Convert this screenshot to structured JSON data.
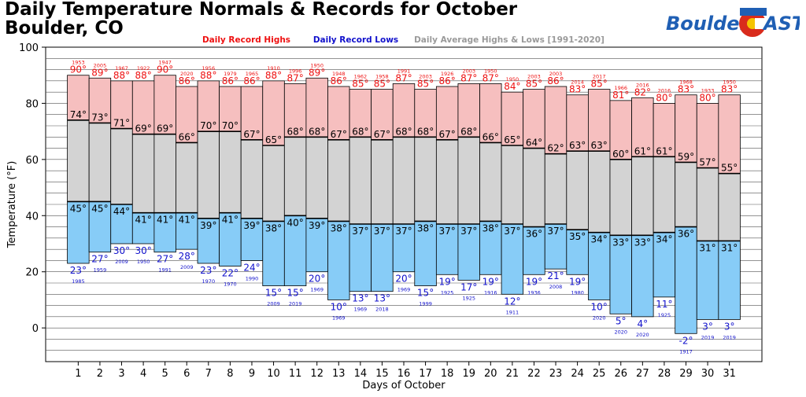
{
  "title": {
    "line1": "Daily Temperature Normals & Records for October",
    "line2": "Boulder, CO"
  },
  "logo": {
    "text_left": "Boulder",
    "text_right": "AST",
    "colors": {
      "blue": "#1f5fb4",
      "red": "#d92b1c",
      "yellow": "#f5c400"
    }
  },
  "colors": {
    "record_high_fill": "#f6bfbf",
    "normal_fill": "#d3d3d3",
    "record_low_fill": "#87ccf7",
    "high_label": "#ee1111",
    "low_label": "#1111cc",
    "normal_label": "#000000",
    "avg_legend": "#9a9a9a"
  },
  "chart_data": {
    "type": "bar",
    "title": "",
    "xlabel": "Days of October",
    "ylabel": "Temperature (°F)",
    "ylim": [
      -12,
      100
    ],
    "yticks": [
      0,
      20,
      40,
      60,
      80,
      100
    ],
    "grid": true,
    "legend": {
      "placement": "top",
      "entries": [
        "Daily Record Highs",
        "Daily Record Lows",
        "Daily Average Highs & Lows [1991-2020]"
      ]
    },
    "categories": [
      "1",
      "2",
      "3",
      "4",
      "5",
      "6",
      "7",
      "8",
      "9",
      "10",
      "11",
      "12",
      "13",
      "14",
      "15",
      "16",
      "17",
      "18",
      "19",
      "20",
      "21",
      "22",
      "23",
      "24",
      "25",
      "26",
      "27",
      "28",
      "29",
      "30",
      "31"
    ],
    "series": [
      {
        "name": "Daily Record Highs",
        "values": [
          90,
          89,
          88,
          88,
          90,
          86,
          88,
          86,
          86,
          88,
          87,
          89,
          86,
          85,
          85,
          87,
          85,
          86,
          87,
          87,
          84,
          85,
          86,
          83,
          85,
          81,
          82,
          80,
          83,
          80,
          83
        ]
      },
      {
        "name": "Daily Average Highs & Lows [1991-2020]",
        "key": "avg_high",
        "values": [
          74,
          73,
          71,
          69,
          69,
          66,
          70,
          70,
          67,
          65,
          68,
          68,
          67,
          68,
          67,
          68,
          68,
          67,
          68,
          66,
          65,
          64,
          62,
          63,
          63,
          60,
          61,
          61,
          59,
          57,
          55
        ]
      },
      {
        "name": "Daily Average Highs & Lows [1991-2020]",
        "key": "avg_low",
        "values": [
          45,
          45,
          44,
          41,
          41,
          41,
          39,
          41,
          39,
          38,
          40,
          39,
          38,
          37,
          37,
          37,
          38,
          37,
          37,
          38,
          37,
          36,
          37,
          35,
          34,
          33,
          33,
          34,
          36,
          31,
          31
        ]
      },
      {
        "name": "Daily Record Lows",
        "values": [
          23,
          27,
          30,
          30,
          27,
          28,
          23,
          22,
          24,
          15,
          15,
          20,
          10,
          13,
          13,
          20,
          15,
          19,
          17,
          19,
          12,
          19,
          21,
          19,
          10,
          5,
          4,
          11,
          -2,
          3,
          3
        ]
      }
    ],
    "record_high_years": [
      "1953",
      "2005",
      "1967",
      "1922",
      "1947",
      "2020",
      "1956",
      "1979",
      "1965",
      "1910",
      "1996",
      "1950",
      "1948",
      "1962",
      "1958",
      "1991",
      "2003",
      "1926",
      "2003",
      "1950",
      "1950",
      "2003",
      "2003",
      "2014",
      "2017",
      "1966",
      "2016",
      "2016",
      "1968",
      "1933",
      "1950"
    ],
    "record_low_years": [
      "1985",
      "1959",
      "2009",
      "1950",
      "1991",
      "2009",
      "1970",
      "1970",
      "1990",
      "2009",
      "2019",
      "1969",
      "1969",
      "1969",
      "2018",
      "1969",
      "1999",
      "1925",
      "1925",
      "1916",
      "1911",
      "1936",
      "2008",
      "1980",
      "2020",
      "2020",
      "2020",
      "1925",
      "1917",
      "2019",
      "2019"
    ]
  }
}
